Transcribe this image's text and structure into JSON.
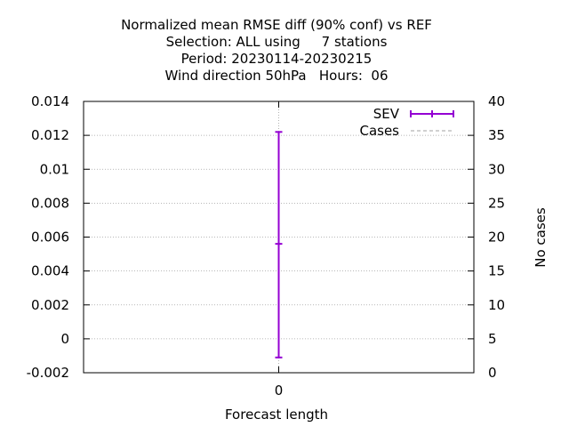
{
  "chart_data": {
    "type": "errorbar",
    "title_lines": [
      "Normalized mean RMSE diff (90% conf) vs REF",
      "Selection: ALL using     7 stations",
      "Period: 20230114-20230215",
      "Wind direction 50hPa   Hours:  06"
    ],
    "xlabel": "Forecast length",
    "ylabel_right": "No cases",
    "x_tick_labels": [
      "0"
    ],
    "y_left_ticks": [
      "-0.002",
      "0",
      "0.002",
      "0.004",
      "0.006",
      "0.008",
      "0.01",
      "0.012",
      "0.014"
    ],
    "y_right_ticks": [
      "0",
      "5",
      "10",
      "15",
      "20",
      "25",
      "30",
      "35",
      "40"
    ],
    "ylim_left": [
      -0.002,
      0.014
    ],
    "ylim_right": [
      0,
      40
    ],
    "xlim": [
      -1,
      1
    ],
    "grid": true,
    "legend_position": "top-right",
    "legend": [
      {
        "name": "SEV",
        "color": "#9400d3",
        "style": "errorbar"
      },
      {
        "name": "Cases",
        "color": "#a0a0a0",
        "style": "dashed"
      }
    ],
    "series": [
      {
        "name": "SEV",
        "color": "#9400d3",
        "points": [
          {
            "x": 0,
            "y": 0.0056,
            "low": -0.0011,
            "high": 0.0122
          }
        ]
      }
    ]
  }
}
